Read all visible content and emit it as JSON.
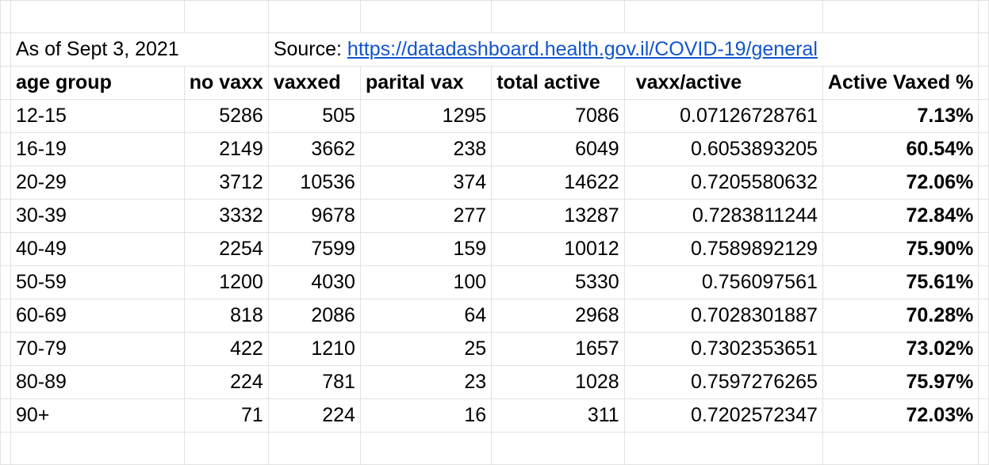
{
  "info": {
    "as_of": "As of Sept 3, 2021",
    "source_label": "Source: ",
    "source_url": "https://datadashboard.health.gov.il/COVID-19/general"
  },
  "headers": [
    "age group",
    "no vaxx",
    "vaxxed",
    "parital vax",
    "total active",
    "vaxx/active",
    "Active Vaxed %"
  ],
  "rows": [
    [
      "12-15",
      "5286",
      "505",
      "1295",
      "7086",
      "0.07126728761",
      "7.13%"
    ],
    [
      "16-19",
      "2149",
      "3662",
      "238",
      "6049",
      "0.6053893205",
      "60.54%"
    ],
    [
      "20-29",
      "3712",
      "10536",
      "374",
      "14622",
      "0.7205580632",
      "72.06%"
    ],
    [
      "30-39",
      "3332",
      "9678",
      "277",
      "13287",
      "0.7283811244",
      "72.84%"
    ],
    [
      "40-49",
      "2254",
      "7599",
      "159",
      "10012",
      "0.7589892129",
      "75.90%"
    ],
    [
      "50-59",
      "1200",
      "4030",
      "100",
      "5330",
      "0.756097561",
      "75.61%"
    ],
    [
      "60-69",
      "818",
      "2086",
      "64",
      "2968",
      "0.7028301887",
      "70.28%"
    ],
    [
      "70-79",
      "422",
      "1210",
      "25",
      "1657",
      "0.7302353651",
      "73.02%"
    ],
    [
      "80-89",
      "224",
      "781",
      "23",
      "1028",
      "0.7597276265",
      "75.97%"
    ],
    [
      "90+",
      "71",
      "224",
      "16",
      "311",
      "0.7202572347",
      "72.03%"
    ]
  ],
  "colors": {
    "gridline": "#e2e2e2",
    "link": "#1155cc",
    "text": "#000000",
    "background": "#ffffff"
  }
}
